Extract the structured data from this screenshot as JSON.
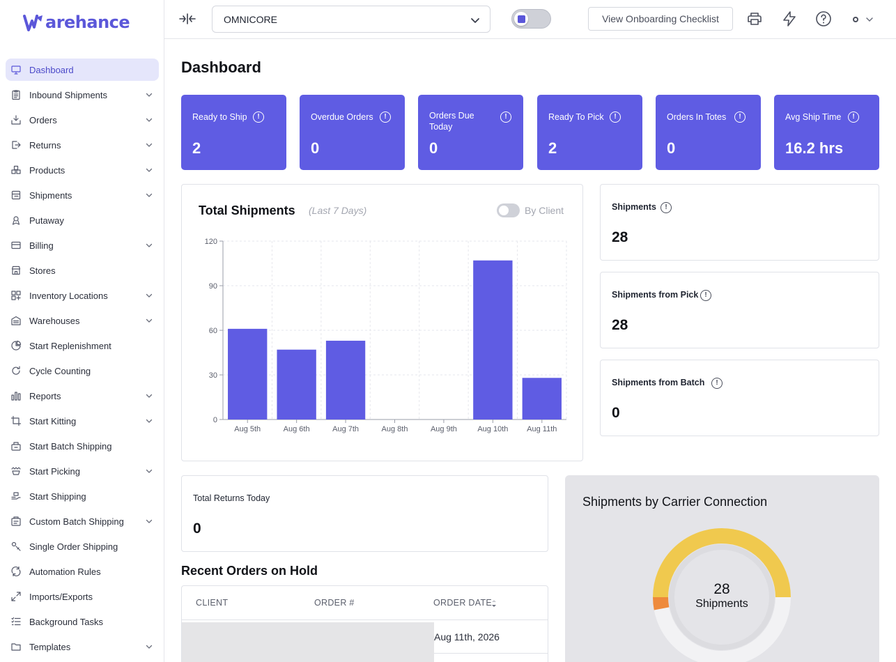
{
  "app": {
    "logo_text": "arehance",
    "brand_color": "#5b57d9",
    "accent_color": "#5f5ce3"
  },
  "sidebar": {
    "items": [
      {
        "label": "Dashboard",
        "icon": "monitor-icon",
        "active": true,
        "expandable": false
      },
      {
        "label": "Inbound Shipments",
        "icon": "clipboard-icon",
        "expandable": true
      },
      {
        "label": "Orders",
        "icon": "inbox-download-icon",
        "expandable": true
      },
      {
        "label": "Returns",
        "icon": "return-arrow-icon",
        "expandable": true
      },
      {
        "label": "Products",
        "icon": "boxes-icon",
        "expandable": true
      },
      {
        "label": "Shipments",
        "icon": "shipment-list-icon",
        "expandable": true
      },
      {
        "label": "Putaway",
        "icon": "putaway-icon",
        "expandable": false
      },
      {
        "label": "Billing",
        "icon": "credit-card-icon",
        "expandable": true
      },
      {
        "label": "Stores",
        "icon": "store-icon",
        "expandable": false
      },
      {
        "label": "Inventory Locations",
        "icon": "grid-location-icon",
        "expandable": true
      },
      {
        "label": "Warehouses",
        "icon": "warehouse-icon",
        "expandable": true
      },
      {
        "label": "Start Replenishment",
        "icon": "pie-chart-icon",
        "expandable": false
      },
      {
        "label": "Cycle Counting",
        "icon": "cycle-icon",
        "expandable": false
      },
      {
        "label": "Reports",
        "icon": "bar-chart-icon",
        "expandable": true
      },
      {
        "label": "Start Kitting",
        "icon": "crop-icon",
        "expandable": true
      },
      {
        "label": "Start Batch Shipping",
        "icon": "batch-box-icon",
        "expandable": false
      },
      {
        "label": "Start Picking",
        "icon": "picking-hand-icon",
        "expandable": true
      },
      {
        "label": "Start Shipping",
        "icon": "shipping-hand-icon",
        "expandable": false
      },
      {
        "label": "Custom Batch Shipping",
        "icon": "custom-batch-icon",
        "expandable": true
      },
      {
        "label": "Single Order Shipping",
        "icon": "single-order-icon",
        "expandable": false
      },
      {
        "label": "Automation Rules",
        "icon": "automation-icon",
        "expandable": false
      },
      {
        "label": "Imports/Exports",
        "icon": "arrows-diagonal-icon",
        "expandable": false
      },
      {
        "label": "Background Tasks",
        "icon": "task-list-icon",
        "expandable": false
      },
      {
        "label": "Templates",
        "icon": "folder-icon",
        "expandable": true
      }
    ]
  },
  "topbar": {
    "client_value": "OMNICORE",
    "onboarding_label": "View Onboarding Checklist"
  },
  "page": {
    "title": "Dashboard"
  },
  "stats": [
    {
      "label": "Ready to Ship",
      "value": "2"
    },
    {
      "label": "Overdue Orders",
      "value": "0"
    },
    {
      "label": "Orders Due Today",
      "value": "0"
    },
    {
      "label": "Ready To Pick",
      "value": "2"
    },
    {
      "label": "Orders In Totes",
      "value": "0"
    },
    {
      "label": "Avg Ship Time",
      "value": "16.2 hrs"
    }
  ],
  "total_shipments": {
    "title": "Total Shipments",
    "subtitle": "(Last 7 Days)",
    "by_client_label": "By Client"
  },
  "chart_data": {
    "type": "bar",
    "title": "Total Shipments",
    "subtitle": "(Last 7 Days)",
    "categories": [
      "Aug 5th",
      "Aug 6th",
      "Aug 7th",
      "Aug 8th",
      "Aug 9th",
      "Aug 10th",
      "Aug 11th"
    ],
    "values": [
      61,
      47,
      53,
      0,
      0,
      107,
      28
    ],
    "ylim": [
      0,
      120
    ],
    "yticks": [
      0,
      30,
      60,
      90,
      120
    ],
    "grid": true,
    "bar_color": "#5f5ce3"
  },
  "kpis": [
    {
      "label": "Shipments",
      "value": "28"
    },
    {
      "label": "Shipments from Pick",
      "value": "28"
    },
    {
      "label": "Shipments from Batch",
      "value": "0"
    }
  ],
  "returns": {
    "label": "Total Returns Today",
    "value": "0"
  },
  "orders_on_hold": {
    "title": "Recent Orders on Hold",
    "columns": [
      "CLIENT",
      "ORDER #",
      "ORDER DATE"
    ],
    "rows": [
      {
        "order_date": "Aug 11th, 2026"
      }
    ]
  },
  "carrier": {
    "title": "Shipments by Carrier Connection",
    "total_value": "28",
    "total_label": "Shipments",
    "slices": [
      {
        "share": 0.5,
        "color": "#f0c94e"
      },
      {
        "share": 0.03,
        "color": "#ee8a3c"
      }
    ],
    "track_color": "#f2f2f4"
  }
}
